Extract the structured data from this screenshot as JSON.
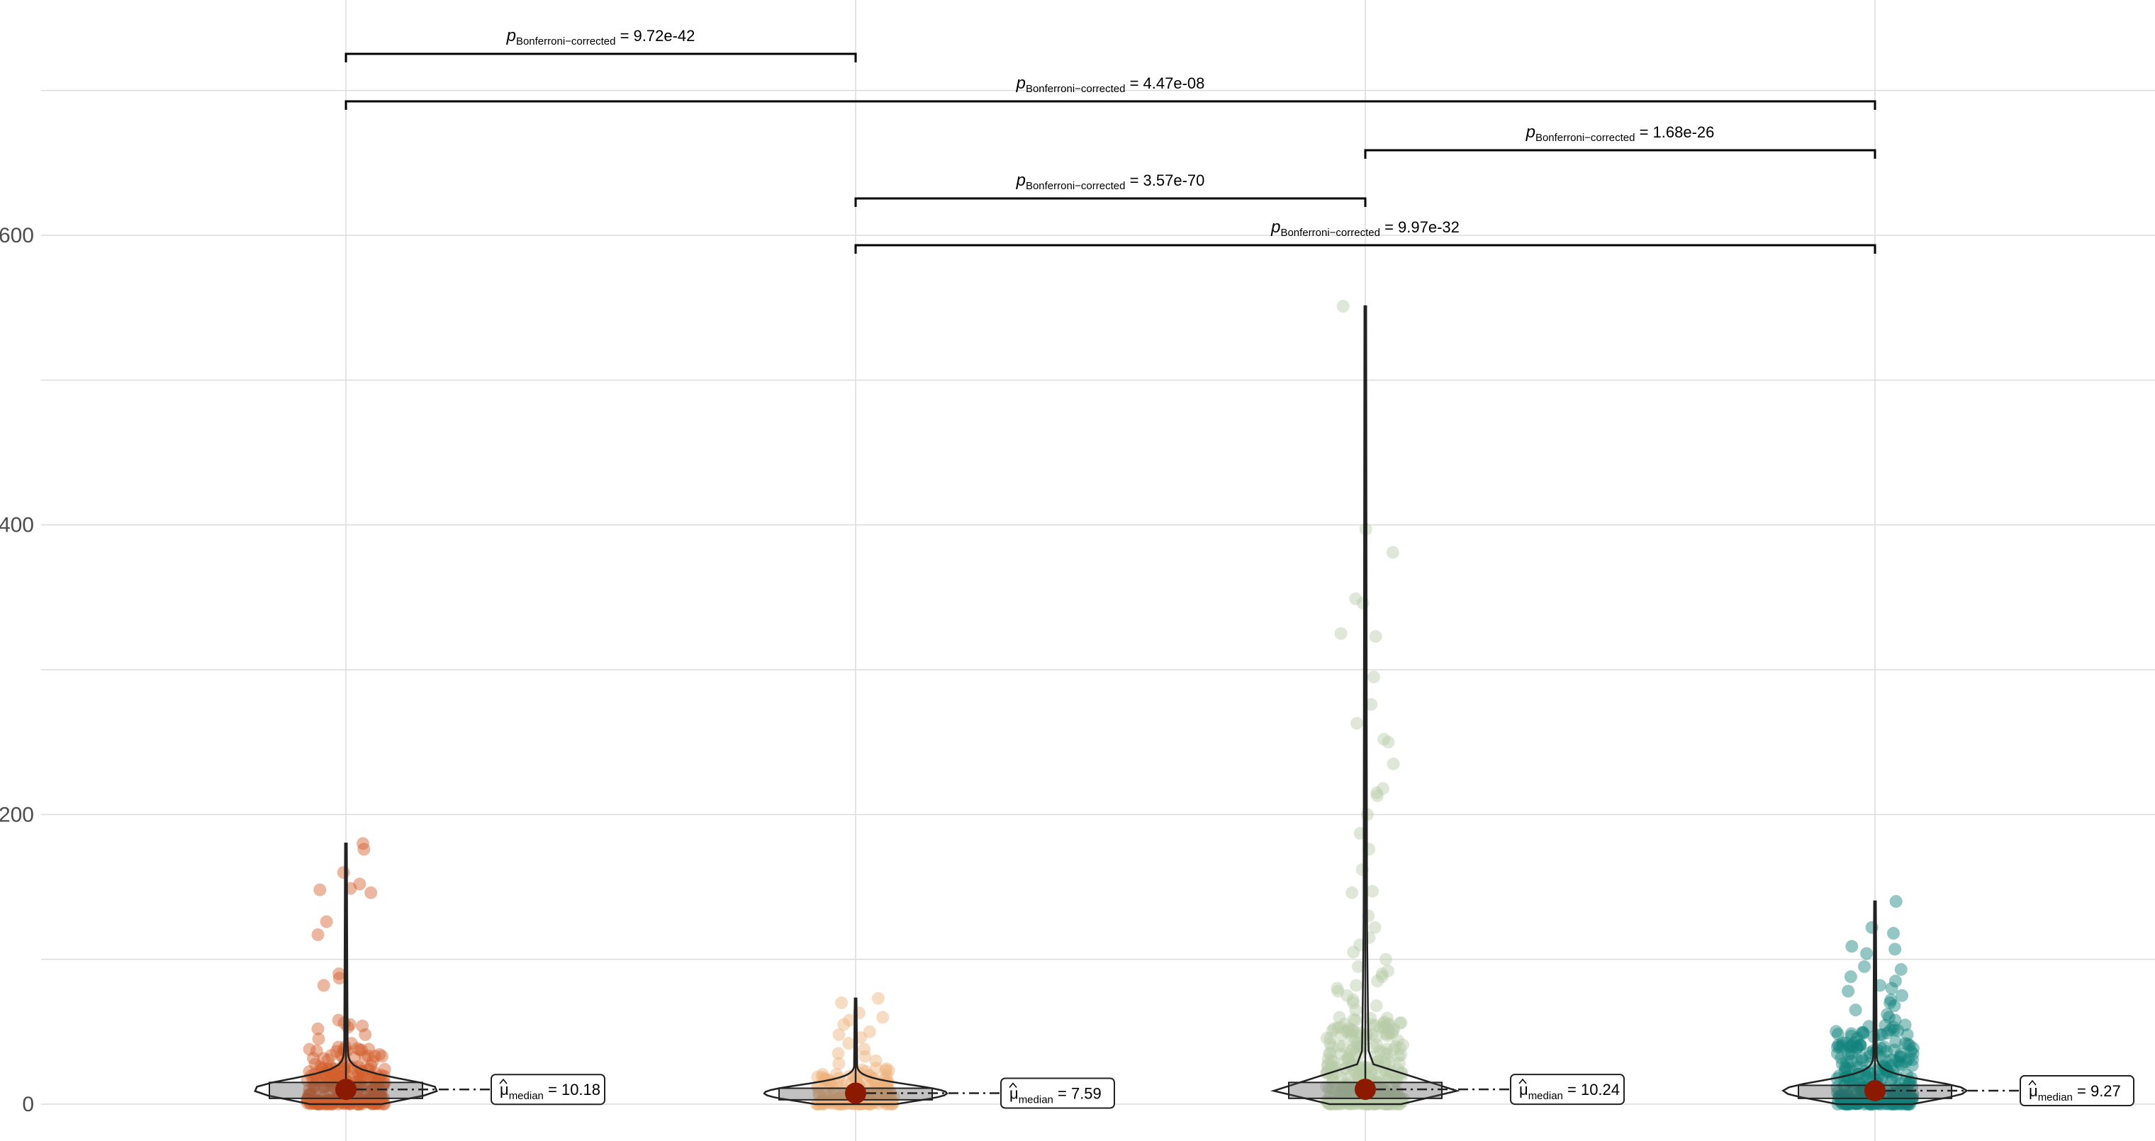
{
  "chart_data": {
    "type": "violin",
    "xlabel": "",
    "ylabel": "",
    "ylim": [
      -5,
      720
    ],
    "yticks": [
      0,
      200,
      400,
      600
    ],
    "grid": true,
    "legend": "none",
    "groups": [
      {
        "color": "#D35F2C",
        "median_label": "= 10.18",
        "median": 10.18,
        "mean_marker": 10.18,
        "box": {
          "q1": 4,
          "q3": 15
        },
        "whisker_max": 180,
        "n_dense": 240,
        "dense_max": 40,
        "outliers": [
          180,
          176,
          160,
          152,
          149,
          148,
          146,
          126,
          117,
          90,
          87,
          82,
          58,
          56,
          55,
          54,
          53,
          52,
          48,
          45,
          42
        ]
      },
      {
        "color": "#EDB27D",
        "median_label": "= 7.59",
        "median": 7.59,
        "mean_marker": 7.59,
        "box": {
          "q1": 3,
          "q3": 11
        },
        "whisker_max": 73,
        "n_dense": 160,
        "dense_max": 25,
        "outliers": [
          73,
          70,
          63,
          60,
          58,
          55,
          50,
          48,
          46,
          42,
          38,
          35,
          33,
          30,
          28
        ]
      },
      {
        "color": "#B7CDA9",
        "median_label": "= 10.24",
        "median": 10.24,
        "mean_marker": 10.24,
        "box": {
          "q1": 4,
          "q3": 15
        },
        "whisker_max": 551,
        "n_dense": 300,
        "dense_max": 60,
        "outliers": [
          551,
          397,
          381,
          349,
          346,
          325,
          323,
          295,
          276,
          263,
          252,
          250,
          235,
          218,
          215,
          213,
          200,
          187,
          176,
          162,
          147,
          146,
          130,
          122,
          115,
          110,
          105,
          100,
          95,
          92,
          90,
          88,
          85,
          82,
          80,
          78,
          75,
          72,
          70,
          68,
          65
        ]
      },
      {
        "color": "#12837D",
        "median_label": "= 9.27",
        "median": 9.27,
        "mean_marker": 9.27,
        "box": {
          "q1": 4,
          "q3": 13
        },
        "whisker_max": 140,
        "n_dense": 280,
        "dense_max": 55,
        "outliers": [
          140,
          122,
          118,
          109,
          107,
          104,
          95,
          93,
          88,
          85,
          82,
          80,
          78,
          75,
          72,
          70,
          68,
          65,
          62,
          60,
          58
        ]
      }
    ],
    "comparisons": [
      {
        "from": 0,
        "to": 1,
        "label": "= 9.72e-42",
        "level": 5
      },
      {
        "from": 0,
        "to": 3,
        "label": "= 4.47e-08",
        "level": 4
      },
      {
        "from": 2,
        "to": 3,
        "label": "= 1.68e-26",
        "level": 3
      },
      {
        "from": 1,
        "to": 2,
        "label": "= 3.57e-70",
        "level": 2
      },
      {
        "from": 1,
        "to": 3,
        "label": "= 9.97e-32",
        "level": 1
      }
    ],
    "p_symbol": "p",
    "p_subscript": "Bonferroni−corrected",
    "mu_symbol": "μ",
    "mu_subscript": "median"
  }
}
